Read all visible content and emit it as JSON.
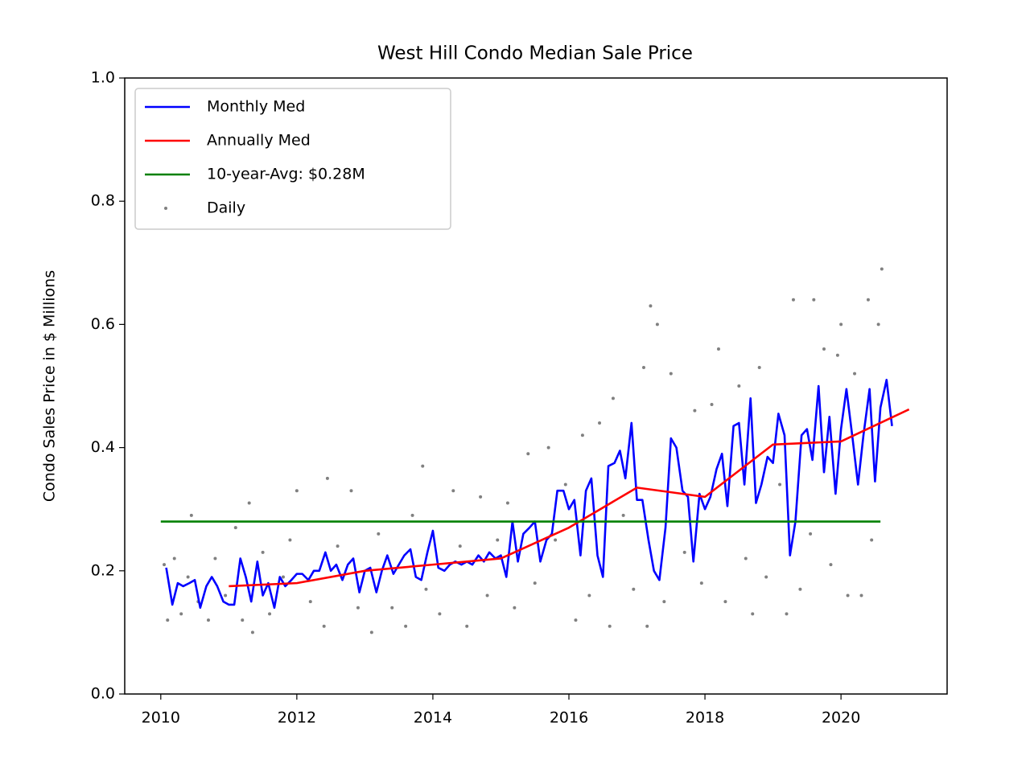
{
  "chart_data": {
    "type": "line",
    "title": "West Hill Condo Median Sale Price",
    "ylabel": "Condo Sales Price in $ Millions",
    "xlim": [
      2009.47,
      2021.56
    ],
    "ylim": [
      0,
      1.0
    ],
    "xticks": [
      2010,
      2012,
      2014,
      2016,
      2018,
      2020
    ],
    "yticks": [
      {
        "value": 0,
        "label": "0.0"
      },
      0.2,
      0.4,
      0.6,
      0.8,
      {
        "value": 1.0,
        "label": "1.0"
      }
    ],
    "grid": false,
    "legend": "upper left",
    "series": [
      {
        "name": "Monthly Med",
        "color": "#0000ff",
        "style": "line",
        "x": [
          2010.08,
          2010.17,
          2010.25,
          2010.33,
          2010.42,
          2010.5,
          2010.58,
          2010.67,
          2010.75,
          2010.83,
          2010.92,
          2011.0,
          2011.08,
          2011.17,
          2011.25,
          2011.33,
          2011.42,
          2011.5,
          2011.58,
          2011.67,
          2011.75,
          2011.83,
          2011.92,
          2012.0,
          2012.08,
          2012.17,
          2012.25,
          2012.33,
          2012.42,
          2012.5,
          2012.58,
          2012.67,
          2012.75,
          2012.83,
          2012.92,
          2013.0,
          2013.08,
          2013.17,
          2013.25,
          2013.33,
          2013.42,
          2013.5,
          2013.58,
          2013.67,
          2013.75,
          2013.83,
          2013.92,
          2014.0,
          2014.08,
          2014.17,
          2014.25,
          2014.33,
          2014.42,
          2014.5,
          2014.58,
          2014.67,
          2014.75,
          2014.83,
          2014.92,
          2015.0,
          2015.08,
          2015.17,
          2015.25,
          2015.33,
          2015.42,
          2015.5,
          2015.58,
          2015.67,
          2015.75,
          2015.83,
          2015.92,
          2016.0,
          2016.08,
          2016.17,
          2016.25,
          2016.33,
          2016.42,
          2016.5,
          2016.58,
          2016.67,
          2016.75,
          2016.83,
          2016.92,
          2017.0,
          2017.08,
          2017.17,
          2017.25,
          2017.33,
          2017.42,
          2017.5,
          2017.58,
          2017.67,
          2017.75,
          2017.83,
          2017.92,
          2018.0,
          2018.08,
          2018.17,
          2018.25,
          2018.33,
          2018.42,
          2018.5,
          2018.58,
          2018.67,
          2018.75,
          2018.83,
          2018.92,
          2019.0,
          2019.08,
          2019.17,
          2019.25,
          2019.33,
          2019.42,
          2019.5,
          2019.58,
          2019.67,
          2019.75,
          2019.83,
          2019.92,
          2020.0,
          2020.08,
          2020.17,
          2020.25,
          2020.33,
          2020.42,
          2020.5,
          2020.58,
          2020.67,
          2020.75
        ],
        "values": [
          0.205,
          0.145,
          0.18,
          0.175,
          0.18,
          0.185,
          0.14,
          0.175,
          0.19,
          0.175,
          0.15,
          0.145,
          0.145,
          0.22,
          0.19,
          0.15,
          0.215,
          0.16,
          0.18,
          0.14,
          0.19,
          0.175,
          0.185,
          0.195,
          0.195,
          0.185,
          0.2,
          0.2,
          0.23,
          0.2,
          0.21,
          0.185,
          0.21,
          0.22,
          0.165,
          0.2,
          0.205,
          0.165,
          0.2,
          0.225,
          0.195,
          0.21,
          0.225,
          0.235,
          0.19,
          0.185,
          0.23,
          0.265,
          0.205,
          0.2,
          0.21,
          0.215,
          0.21,
          0.215,
          0.21,
          0.225,
          0.215,
          0.23,
          0.22,
          0.225,
          0.19,
          0.28,
          0.215,
          0.26,
          0.27,
          0.28,
          0.215,
          0.25,
          0.26,
          0.33,
          0.33,
          0.3,
          0.315,
          0.225,
          0.33,
          0.35,
          0.225,
          0.19,
          0.37,
          0.375,
          0.395,
          0.35,
          0.44,
          0.315,
          0.315,
          0.25,
          0.2,
          0.185,
          0.27,
          0.415,
          0.4,
          0.33,
          0.32,
          0.215,
          0.325,
          0.3,
          0.32,
          0.365,
          0.39,
          0.305,
          0.435,
          0.44,
          0.34,
          0.48,
          0.31,
          0.34,
          0.385,
          0.375,
          0.455,
          0.42,
          0.225,
          0.28,
          0.42,
          0.43,
          0.38,
          0.5,
          0.36,
          0.45,
          0.325,
          0.43,
          0.495,
          0.415,
          0.34,
          0.42,
          0.495,
          0.345,
          0.465,
          0.51,
          0.435
        ]
      },
      {
        "name": "Annually Med",
        "color": "#ff0000",
        "style": "line",
        "x": [
          2011,
          2012,
          2013,
          2014,
          2015,
          2016,
          2017,
          2018,
          2019,
          2020,
          2021
        ],
        "values": [
          0.175,
          0.18,
          0.2,
          0.21,
          0.22,
          0.27,
          0.335,
          0.32,
          0.405,
          0.41,
          0.462
        ]
      },
      {
        "name": "10-year-Avg: $0.28M",
        "color": "#008000",
        "style": "line",
        "x": [
          2010,
          2020.58
        ],
        "values": [
          0.28,
          0.28
        ]
      },
      {
        "name": "Daily",
        "color": "#808080",
        "style": "points",
        "x": [
          2010.05,
          2010.1,
          2010.2,
          2010.3,
          2010.4,
          2010.45,
          2010.55,
          2010.7,
          2010.8,
          2010.95,
          2011.1,
          2011.2,
          2011.3,
          2011.35,
          2011.5,
          2011.6,
          2011.8,
          2011.9,
          2012.0,
          2012.2,
          2012.4,
          2012.45,
          2012.6,
          2012.8,
          2012.9,
          2013.1,
          2013.2,
          2013.4,
          2013.6,
          2013.7,
          2013.85,
          2013.9,
          2014.1,
          2014.3,
          2014.4,
          2014.5,
          2014.7,
          2014.8,
          2014.95,
          2015.1,
          2015.2,
          2015.4,
          2015.5,
          2015.7,
          2015.8,
          2015.95,
          2016.1,
          2016.2,
          2016.3,
          2016.45,
          2016.6,
          2016.65,
          2016.8,
          2016.95,
          2017.1,
          2017.15,
          2017.2,
          2017.3,
          2017.4,
          2017.5,
          2017.7,
          2017.85,
          2017.95,
          2018.1,
          2018.2,
          2018.3,
          2018.5,
          2018.6,
          2018.7,
          2018.8,
          2018.9,
          2019.1,
          2019.2,
          2019.3,
          2019.4,
          2019.55,
          2019.6,
          2019.75,
          2019.85,
          2019.95,
          2020.0,
          2020.1,
          2020.2,
          2020.3,
          2020.4,
          2020.45,
          2020.55,
          2020.6
        ],
        "values": [
          0.21,
          0.12,
          0.22,
          0.13,
          0.19,
          0.29,
          0.15,
          0.12,
          0.22,
          0.16,
          0.27,
          0.12,
          0.31,
          0.1,
          0.23,
          0.13,
          0.19,
          0.25,
          0.33,
          0.15,
          0.11,
          0.35,
          0.24,
          0.33,
          0.14,
          0.1,
          0.26,
          0.14,
          0.11,
          0.29,
          0.37,
          0.17,
          0.13,
          0.33,
          0.24,
          0.11,
          0.32,
          0.16,
          0.25,
          0.31,
          0.14,
          0.39,
          0.18,
          0.4,
          0.25,
          0.34,
          0.12,
          0.42,
          0.16,
          0.44,
          0.11,
          0.48,
          0.29,
          0.17,
          0.53,
          0.11,
          0.63,
          0.6,
          0.15,
          0.52,
          0.23,
          0.46,
          0.18,
          0.47,
          0.56,
          0.15,
          0.5,
          0.22,
          0.13,
          0.53,
          0.19,
          0.34,
          0.13,
          0.64,
          0.17,
          0.26,
          0.64,
          0.56,
          0.21,
          0.55,
          0.6,
          0.16,
          0.52,
          0.16,
          0.64,
          0.25,
          0.6,
          0.69
        ]
      }
    ]
  }
}
